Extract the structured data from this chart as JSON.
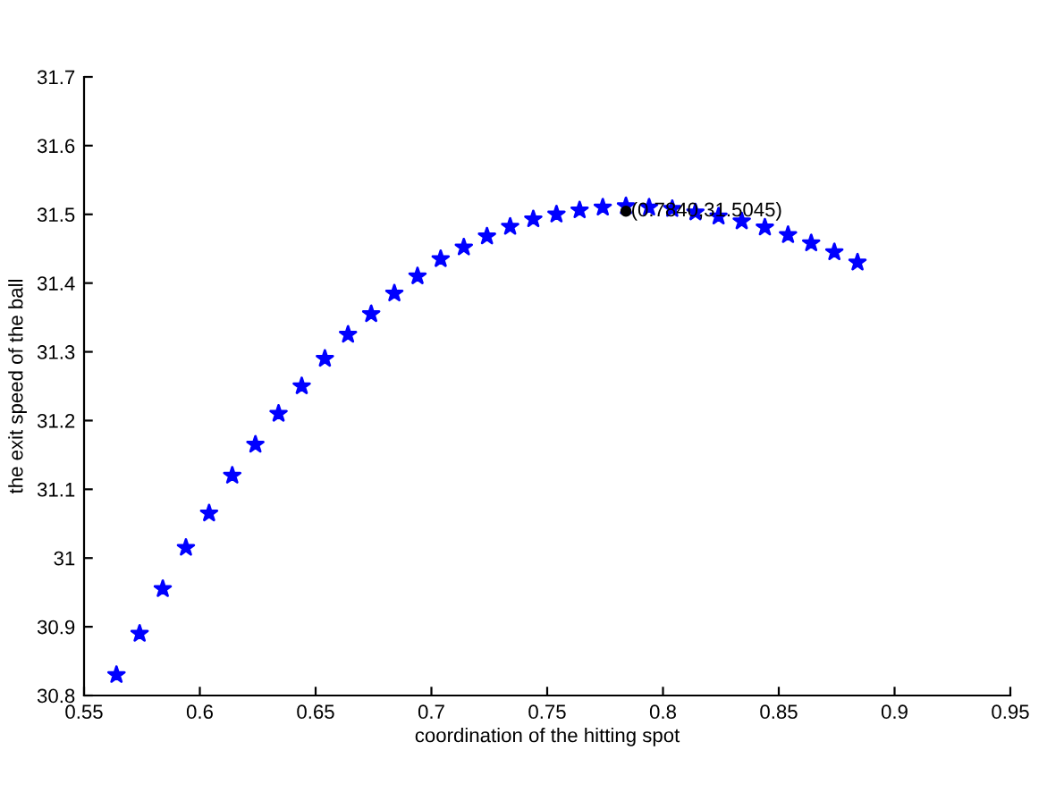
{
  "chart_data": {
    "type": "scatter",
    "xlabel": "coordination of the hitting spot",
    "ylabel": "the exit speed of the ball",
    "xlim": [
      0.55,
      0.95
    ],
    "xticks": [
      0.55,
      0.6,
      0.65,
      0.7,
      0.75,
      0.8,
      0.85,
      0.9,
      0.95
    ],
    "ylim": [
      30.8,
      31.7
    ],
    "yticks": [
      30.8,
      30.9,
      31,
      31.1,
      31.2,
      31.3,
      31.4,
      31.5,
      31.6,
      31.7
    ],
    "grid": false,
    "legend": false,
    "series": [
      {
        "marker": "star",
        "color": "#0000ff",
        "x": [
          0.564,
          0.574,
          0.584,
          0.594,
          0.604,
          0.614,
          0.624,
          0.634,
          0.644,
          0.654,
          0.664,
          0.674,
          0.684,
          0.694,
          0.704,
          0.714,
          0.724,
          0.734,
          0.744,
          0.754,
          0.764,
          0.774,
          0.784,
          0.794,
          0.804,
          0.814,
          0.824,
          0.834,
          0.844,
          0.854,
          0.864,
          0.874,
          0.884
        ],
        "values": [
          30.83,
          30.89,
          30.955,
          31.015,
          31.065,
          31.12,
          31.165,
          31.21,
          31.25,
          31.29,
          31.325,
          31.355,
          31.385,
          31.41,
          31.435,
          31.452,
          31.468,
          31.482,
          31.493,
          31.5,
          31.506,
          31.51,
          31.512,
          31.51,
          31.508,
          31.503,
          31.497,
          31.49,
          31.481,
          31.47,
          31.458,
          31.445,
          31.43
        ]
      },
      {
        "marker": "circle",
        "color": "#000000",
        "x": [
          0.784
        ],
        "values": [
          31.5045
        ]
      }
    ],
    "annotations": [
      {
        "text": "(0.7840,31.5045)",
        "x": 0.784,
        "y": 31.5045
      }
    ]
  }
}
